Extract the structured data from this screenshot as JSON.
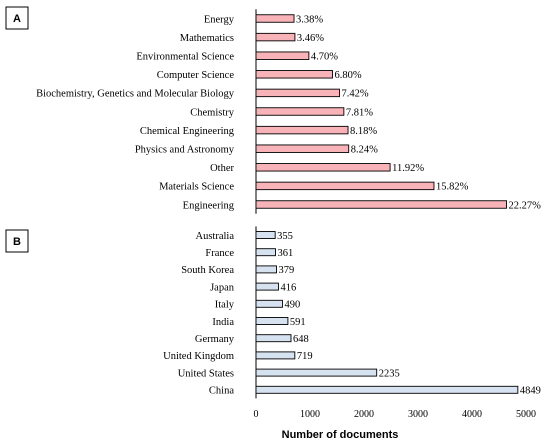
{
  "chart_data": [
    {
      "type": "bar",
      "orientation": "horizontal",
      "panel_label": "A",
      "categories": [
        "Energy",
        "Mathematics",
        "Environmental Science",
        "Computer Science",
        "Biochemistry, Genetics and Molecular Biology",
        "Chemistry",
        "Chemical Engineering",
        "Physics and Astronomy",
        "Other",
        "Materials Science",
        "Engineering"
      ],
      "values": [
        3.38,
        3.46,
        4.7,
        6.8,
        7.42,
        7.81,
        8.18,
        8.24,
        11.92,
        15.82,
        22.27
      ],
      "value_labels": [
        "3.38%",
        "3.46%",
        "4.70%",
        "6.80%",
        "7.42%",
        "7.81%",
        "8.18%",
        "8.24%",
        "11.92%",
        "15.82%",
        "22.27%"
      ],
      "bar_color": "#f7b3b8",
      "xlim": [
        0,
        24
      ]
    },
    {
      "type": "bar",
      "orientation": "horizontal",
      "panel_label": "B",
      "categories": [
        "Australia",
        "France",
        "South Korea",
        "Japan",
        "Italy",
        "India",
        "Germany",
        "United Kingdom",
        "United States",
        "China"
      ],
      "values": [
        355,
        361,
        379,
        416,
        490,
        591,
        648,
        719,
        2235,
        4849
      ],
      "value_labels": [
        "355",
        "361",
        "379",
        "416",
        "490",
        "591",
        "648",
        "719",
        "2235",
        "4849"
      ],
      "bar_color": "#d6e2f0",
      "xlim": [
        0,
        5000
      ],
      "xticks": [
        "0",
        "1000",
        "2000",
        "3000",
        "4000",
        "5000"
      ],
      "xlabel": "Number of documents"
    }
  ]
}
